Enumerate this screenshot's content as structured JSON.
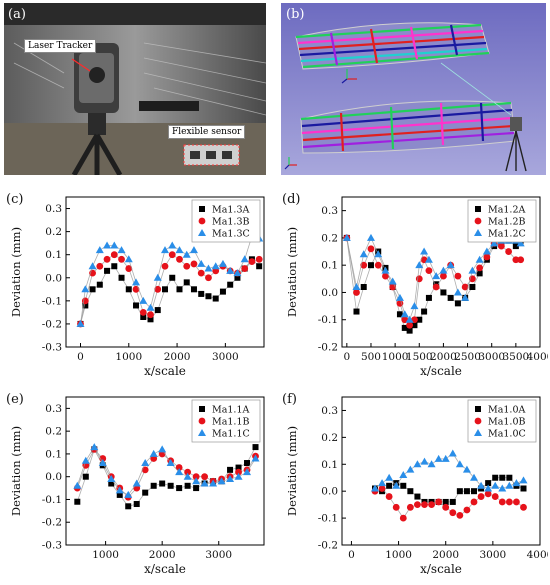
{
  "panels": {
    "a": {
      "label": "(a)",
      "callout_tracker": "Laser Tracker",
      "callout_sensor": "Flexible sensor"
    },
    "b": {
      "label": "(b)"
    }
  },
  "colors": {
    "series_a": "#000000",
    "series_b": "#e6121b",
    "series_c": "#2a8ee8",
    "fit_line": "#9a9a9a",
    "photo_bg": "#3a3a3a",
    "render_bg": "#7a78c4"
  },
  "chart_data": [
    {
      "id": "c",
      "label": "(c)",
      "type": "scatter",
      "xlabel": "x/scale",
      "ylabel": "Deviation  (mm)",
      "xlim": [
        -300,
        3800
      ],
      "ylim": [
        -0.3,
        0.35
      ],
      "xticks": [
        0,
        1000,
        2000,
        3000
      ],
      "yticks": [
        -0.3,
        -0.2,
        -0.1,
        0.0,
        0.1,
        0.2,
        0.3
      ],
      "legend_position": "top-right",
      "series": [
        {
          "name": "Ma1.3A",
          "marker": "square",
          "x": [
            0,
            100,
            250,
            400,
            550,
            700,
            850,
            1000,
            1150,
            1300,
            1450,
            1600,
            1750,
            1900,
            2050,
            2200,
            2350,
            2500,
            2650,
            2800,
            2950,
            3100,
            3250,
            3400,
            3550,
            3700
          ],
          "y": [
            -0.2,
            -0.12,
            -0.05,
            -0.03,
            0.03,
            0.05,
            0.0,
            -0.05,
            -0.12,
            -0.17,
            -0.18,
            -0.14,
            -0.05,
            0.0,
            -0.05,
            -0.02,
            -0.05,
            -0.07,
            -0.08,
            -0.09,
            -0.06,
            -0.03,
            0.0,
            0.04,
            0.08,
            0.05
          ]
        },
        {
          "name": "Ma1.3B",
          "marker": "circle",
          "x": [
            0,
            100,
            250,
            400,
            550,
            700,
            850,
            1000,
            1150,
            1300,
            1450,
            1600,
            1750,
            1900,
            2050,
            2200,
            2350,
            2500,
            2650,
            2800,
            2950,
            3100,
            3250,
            3400,
            3550,
            3700
          ],
          "y": [
            -0.2,
            -0.1,
            0.02,
            0.05,
            0.08,
            0.1,
            0.08,
            0.04,
            -0.05,
            -0.15,
            -0.16,
            -0.05,
            0.05,
            0.1,
            0.08,
            0.05,
            0.06,
            0.02,
            0.0,
            0.03,
            0.05,
            0.03,
            0.02,
            0.04,
            0.07,
            0.08
          ]
        },
        {
          "name": "Ma1.3C",
          "marker": "triangle",
          "x": [
            0,
            100,
            250,
            400,
            550,
            700,
            850,
            1000,
            1150,
            1300,
            1450,
            1600,
            1750,
            1900,
            2050,
            2200,
            2350,
            2500,
            2650,
            2800,
            2950,
            3100,
            3250,
            3400,
            3550,
            3700
          ],
          "y": [
            -0.2,
            -0.05,
            0.05,
            0.12,
            0.14,
            0.14,
            0.12,
            0.08,
            -0.02,
            -0.1,
            -0.13,
            0.0,
            0.12,
            0.14,
            0.12,
            0.1,
            0.12,
            0.06,
            0.04,
            0.05,
            0.06,
            0.03,
            0.02,
            0.08,
            0.18,
            0.17
          ]
        }
      ]
    },
    {
      "id": "d",
      "label": "(d)",
      "type": "scatter",
      "xlabel": "x/scale",
      "ylabel": "Deviation  (mm)",
      "xlim": [
        -100,
        4000
      ],
      "ylim": [
        -0.2,
        0.35
      ],
      "xticks": [
        0,
        500,
        1000,
        1500,
        2000,
        2500,
        3000,
        3500,
        4000
      ],
      "yticks": [
        -0.2,
        -0.1,
        0.0,
        0.1,
        0.2,
        0.3
      ],
      "legend_position": "top-right",
      "series": [
        {
          "name": "Ma1.2A",
          "marker": "square",
          "x": [
            0,
            200,
            350,
            500,
            650,
            800,
            950,
            1100,
            1200,
            1300,
            1400,
            1500,
            1600,
            1700,
            1850,
            2000,
            2150,
            2300,
            2450,
            2600,
            2750,
            2900,
            3050,
            3200,
            3350,
            3500,
            3600
          ],
          "y": [
            0.2,
            -0.07,
            0.02,
            0.1,
            0.15,
            0.09,
            0.02,
            -0.08,
            -0.13,
            -0.14,
            -0.12,
            -0.1,
            -0.07,
            -0.02,
            0.03,
            0.0,
            -0.02,
            -0.04,
            -0.02,
            0.02,
            0.07,
            0.12,
            0.17,
            0.18,
            0.19,
            0.17,
            0.19
          ]
        },
        {
          "name": "Ma1.2B",
          "marker": "circle",
          "x": [
            0,
            200,
            350,
            500,
            650,
            800,
            950,
            1100,
            1200,
            1300,
            1400,
            1500,
            1600,
            1700,
            1850,
            2000,
            2150,
            2300,
            2450,
            2600,
            2750,
            2900,
            3050,
            3200,
            3350,
            3500,
            3600
          ],
          "y": [
            0.2,
            0.0,
            0.1,
            0.16,
            0.1,
            0.06,
            0.02,
            -0.04,
            -0.1,
            -0.12,
            -0.1,
            0.05,
            0.12,
            0.08,
            0.02,
            0.06,
            0.1,
            0.06,
            0.02,
            0.05,
            0.09,
            0.13,
            0.18,
            0.17,
            0.15,
            0.12,
            0.12
          ]
        },
        {
          "name": "Ma1.2C",
          "marker": "triangle",
          "x": [
            0,
            200,
            350,
            500,
            650,
            800,
            950,
            1100,
            1200,
            1300,
            1400,
            1500,
            1600,
            1700,
            1850,
            2000,
            2150,
            2300,
            2450,
            2600,
            2750,
            2900,
            3050,
            3200,
            3350,
            3500,
            3600
          ],
          "y": [
            0.2,
            0.02,
            0.14,
            0.2,
            0.14,
            0.08,
            0.04,
            -0.02,
            -0.08,
            -0.1,
            -0.05,
            0.1,
            0.15,
            0.12,
            0.06,
            0.08,
            0.1,
            0.0,
            -0.02,
            0.08,
            0.12,
            0.15,
            0.18,
            0.19,
            0.19,
            0.19,
            0.18
          ]
        }
      ]
    },
    {
      "id": "e",
      "label": "(e)",
      "type": "scatter",
      "xlabel": "x/scale",
      "ylabel": "Deviation  (mm)",
      "xlim": [
        300,
        3800
      ],
      "ylim": [
        -0.3,
        0.35
      ],
      "xticks": [
        1000,
        2000,
        3000
      ],
      "yticks": [
        -0.3,
        -0.2,
        -0.1,
        0.0,
        0.1,
        0.2,
        0.3
      ],
      "legend_position": "top-right",
      "series": [
        {
          "name": "Ma1.1A",
          "marker": "square",
          "x": [
            500,
            650,
            800,
            950,
            1100,
            1250,
            1400,
            1550,
            1700,
            1850,
            2000,
            2150,
            2300,
            2450,
            2600,
            2750,
            2900,
            3050,
            3200,
            3350,
            3500,
            3650
          ],
          "y": [
            -0.11,
            0.0,
            0.12,
            0.05,
            -0.03,
            -0.08,
            -0.13,
            -0.12,
            -0.07,
            -0.04,
            -0.03,
            -0.04,
            -0.05,
            -0.04,
            -0.05,
            -0.03,
            -0.02,
            -0.02,
            0.03,
            0.04,
            0.06,
            0.13
          ]
        },
        {
          "name": "Ma1.1B",
          "marker": "circle",
          "x": [
            500,
            650,
            800,
            950,
            1100,
            1250,
            1400,
            1550,
            1700,
            1850,
            2000,
            2150,
            2300,
            2450,
            2600,
            2750,
            2900,
            3050,
            3200,
            3350,
            3500,
            3650
          ],
          "y": [
            -0.05,
            0.05,
            0.12,
            0.08,
            0.0,
            -0.05,
            -0.09,
            -0.05,
            0.03,
            0.08,
            0.1,
            0.07,
            0.04,
            0.02,
            0.0,
            0.0,
            -0.02,
            -0.01,
            0.0,
            0.02,
            0.03,
            0.09
          ]
        },
        {
          "name": "Ma1.1C",
          "marker": "triangle",
          "x": [
            500,
            650,
            800,
            950,
            1100,
            1250,
            1400,
            1550,
            1700,
            1850,
            2000,
            2150,
            2300,
            2450,
            2600,
            2750,
            2900,
            3050,
            3200,
            3350,
            3500,
            3650
          ],
          "y": [
            -0.04,
            0.07,
            0.13,
            0.06,
            -0.01,
            -0.06,
            -0.08,
            -0.03,
            0.06,
            0.1,
            0.12,
            0.06,
            0.02,
            0.0,
            -0.02,
            -0.03,
            -0.03,
            -0.02,
            -0.01,
            0.0,
            0.02,
            0.08
          ]
        }
      ]
    },
    {
      "id": "f",
      "label": "(f)",
      "type": "scatter",
      "xlabel": "x/scale",
      "ylabel": "Deviation  (mm)",
      "xlim": [
        -200,
        4000
      ],
      "ylim": [
        -0.2,
        0.35
      ],
      "xticks": [
        0,
        1000,
        2000,
        3000,
        4000
      ],
      "yticks": [
        -0.2,
        -0.1,
        0.0,
        0.1,
        0.2,
        0.3
      ],
      "legend_position": "top-right",
      "series": [
        {
          "name": "Ma1.0A",
          "marker": "square",
          "x": [
            500,
            650,
            800,
            950,
            1100,
            1250,
            1400,
            1550,
            1700,
            1850,
            2000,
            2150,
            2300,
            2450,
            2600,
            2750,
            2900,
            3050,
            3200,
            3350,
            3500,
            3650
          ],
          "y": [
            0.01,
            0.0,
            0.02,
            0.03,
            0.02,
            0.0,
            -0.02,
            -0.04,
            -0.04,
            -0.04,
            -0.04,
            -0.04,
            0.0,
            0.0,
            0.0,
            0.01,
            0.03,
            0.05,
            0.05,
            0.05,
            0.02,
            0.01
          ]
        },
        {
          "name": "Ma1.0B",
          "marker": "circle",
          "x": [
            500,
            650,
            800,
            950,
            1100,
            1250,
            1400,
            1550,
            1700,
            1850,
            2000,
            2150,
            2300,
            2450,
            2600,
            2750,
            2900,
            3050,
            3200,
            3350,
            3500,
            3650
          ],
          "y": [
            0.0,
            0.01,
            -0.02,
            -0.06,
            -0.1,
            -0.06,
            -0.05,
            -0.05,
            -0.05,
            -0.04,
            -0.06,
            -0.08,
            -0.09,
            -0.07,
            -0.04,
            -0.02,
            -0.01,
            -0.02,
            -0.04,
            -0.04,
            -0.04,
            -0.06
          ]
        },
        {
          "name": "Ma1.0C",
          "marker": "triangle",
          "x": [
            500,
            650,
            800,
            950,
            1100,
            1250,
            1400,
            1550,
            1700,
            1850,
            2000,
            2150,
            2300,
            2450,
            2600,
            2750,
            2900,
            3050,
            3200,
            3350,
            3500,
            3650
          ],
          "y": [
            0.01,
            0.03,
            0.05,
            0.02,
            0.06,
            0.08,
            0.1,
            0.11,
            0.1,
            0.12,
            0.12,
            0.14,
            0.1,
            0.08,
            0.05,
            0.02,
            0.01,
            0.02,
            0.01,
            0.02,
            0.03,
            0.04
          ]
        }
      ]
    }
  ]
}
